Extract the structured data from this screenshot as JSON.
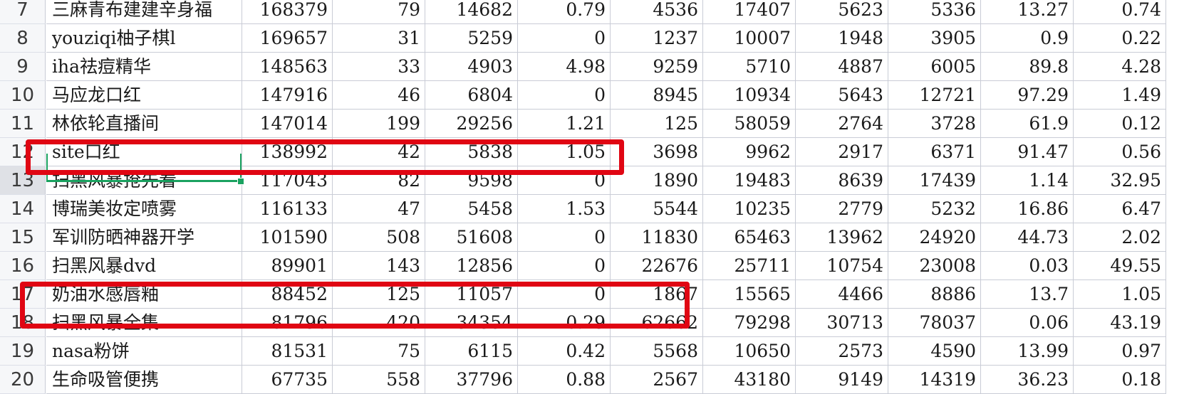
{
  "sheet": {
    "rows": [
      {
        "num": "7",
        "cells": [
          "三麻青布建建辛身福",
          "168379",
          "79",
          "14682",
          "0.79",
          "4536",
          "17407",
          "5623",
          "5336",
          "13.27",
          "0.74"
        ]
      },
      {
        "num": "8",
        "cells": [
          "youziqi柚子棋l",
          "169657",
          "31",
          "5259",
          "0",
          "1237",
          "10007",
          "1948",
          "3905",
          "0.9",
          "0.22"
        ]
      },
      {
        "num": "9",
        "cells": [
          "iha祛痘精华",
          "148563",
          "33",
          "4903",
          "4.98",
          "9259",
          "5710",
          "4887",
          "6005",
          "89.8",
          "4.28"
        ]
      },
      {
        "num": "10",
        "cells": [
          "马应龙口红",
          "147916",
          "46",
          "6804",
          "0",
          "8945",
          "10934",
          "5643",
          "12721",
          "97.29",
          "1.49"
        ]
      },
      {
        "num": "11",
        "cells": [
          "林依轮直播间",
          "147014",
          "199",
          "29256",
          "1.21",
          "125",
          "58059",
          "2764",
          "3728",
          "61.9",
          "0.12"
        ]
      },
      {
        "num": "12",
        "cells": [
          "site口红",
          "138992",
          "42",
          "5838",
          "1.05",
          "3698",
          "9962",
          "2917",
          "6371",
          "91.47",
          "0.56"
        ]
      },
      {
        "num": "13",
        "cells": [
          "扫黑风暴抢先看",
          "117043",
          "82",
          "9598",
          "0",
          "1890",
          "19483",
          "8639",
          "17439",
          "1.14",
          "32.95"
        ]
      },
      {
        "num": "14",
        "cells": [
          "博瑞美妆定喷雾",
          "116133",
          "47",
          "5458",
          "1.53",
          "5544",
          "10235",
          "2779",
          "5232",
          "16.86",
          "6.47"
        ]
      },
      {
        "num": "15",
        "cells": [
          "军训防晒神器开学",
          "101590",
          "508",
          "51608",
          "0",
          "11830",
          "65463",
          "13962",
          "24920",
          "44.73",
          "2.02"
        ]
      },
      {
        "num": "16",
        "cells": [
          "扫黑风暴dvd",
          "89901",
          "143",
          "12856",
          "0",
          "22676",
          "25711",
          "10754",
          "23008",
          "0.03",
          "49.55"
        ]
      },
      {
        "num": "17",
        "cells": [
          "奶油水感唇釉",
          "88452",
          "125",
          "11057",
          "0",
          "1867",
          "15565",
          "4466",
          "8886",
          "13.7",
          "1.05"
        ]
      },
      {
        "num": "18",
        "cells": [
          "扫黑风暴全集",
          "81796",
          "420",
          "34354",
          "0.29",
          "62662",
          "79298",
          "30713",
          "78037",
          "0.06",
          "43.19"
        ]
      },
      {
        "num": "19",
        "cells": [
          "nasa粉饼",
          "81531",
          "75",
          "6115",
          "0.42",
          "5568",
          "10650",
          "2573",
          "4590",
          "13.99",
          "0.97"
        ]
      },
      {
        "num": "20",
        "cells": [
          "生命吸管便携",
          "67735",
          "558",
          "37796",
          "0.88",
          "2567",
          "43180",
          "9149",
          "14319",
          "36.23",
          "0.18"
        ]
      }
    ]
  },
  "colors": {
    "annotation_red": "#e00613",
    "selection_green": "#1aa260",
    "grid": "#c9ccd6",
    "header_bg": "#f6f7f9"
  }
}
